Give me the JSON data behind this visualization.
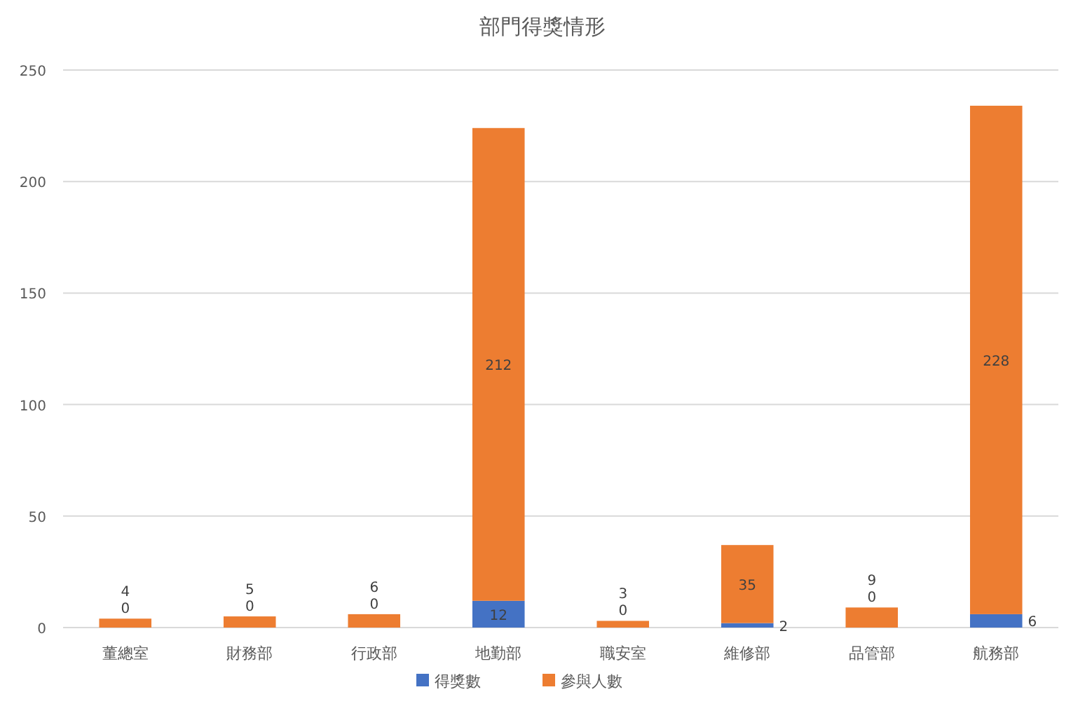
{
  "chart_data": {
    "type": "bar",
    "stacked": true,
    "title": "部門得獎情形",
    "categories": [
      "董總室",
      "財務部",
      "行政部",
      "地勤部",
      "職安室",
      "維修部",
      "品管部",
      "航務部"
    ],
    "series": [
      {
        "name": "得獎數",
        "color": "#4472c4",
        "values": [
          0,
          0,
          0,
          12,
          0,
          2,
          0,
          6
        ]
      },
      {
        "name": "參與人數",
        "color": "#ed7d31",
        "values": [
          4,
          5,
          6,
          212,
          3,
          35,
          9,
          228
        ]
      }
    ],
    "ylim": [
      0,
      250
    ],
    "yticks": [
      0,
      50,
      100,
      150,
      200,
      250
    ],
    "grid": "y",
    "legend": "bottom",
    "data_labels": true
  }
}
